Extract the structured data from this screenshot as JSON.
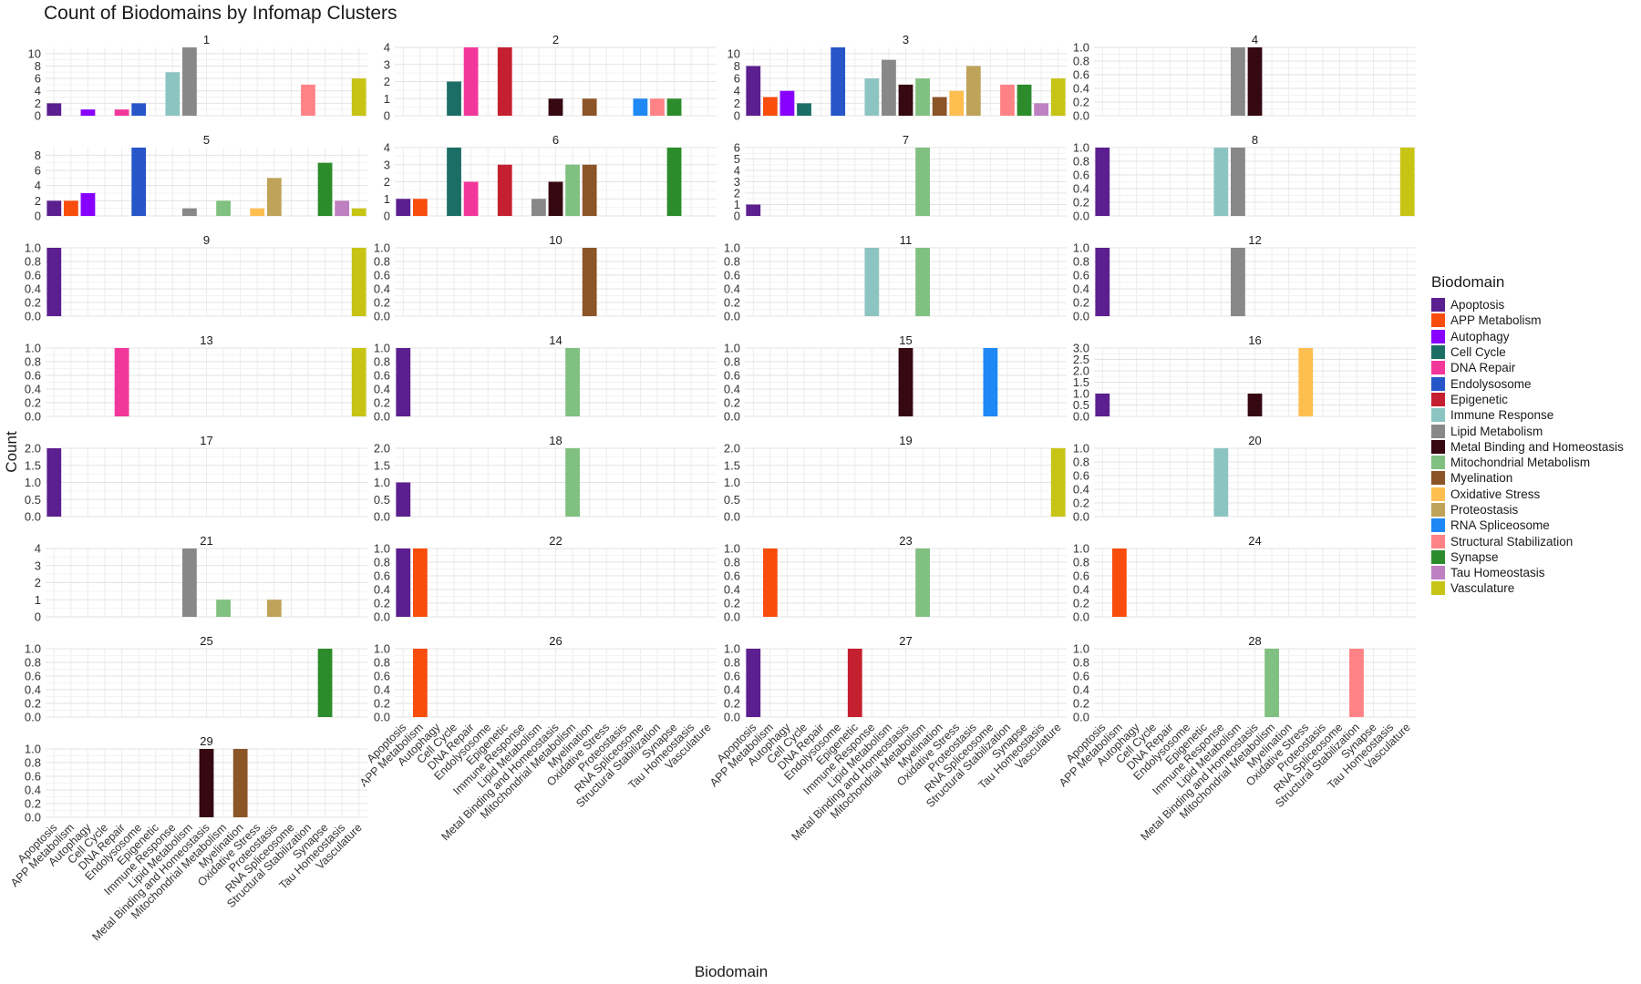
{
  "chart_data": {
    "type": "bar",
    "title": "Count of Biodomains by Infomap Clusters",
    "xlabel": "Biodomain",
    "ylabel": "Count",
    "legend_title": "Biodomain",
    "legend_position": "right",
    "grid": true,
    "categories": [
      "Apoptosis",
      "APP Metabolism",
      "Autophagy",
      "Cell Cycle",
      "DNA Repair",
      "Endolysosome",
      "Epigenetic",
      "Immune Response",
      "Lipid Metabolism",
      "Metal Binding and Homeostasis",
      "Mitochondrial Metabolism",
      "Myelination",
      "Oxidative Stress",
      "Proteostasis",
      "RNA Spliceosome",
      "Structural Stabilization",
      "Synapse",
      "Tau Homeostasis",
      "Vasculature"
    ],
    "colors": [
      "#5B1F8F",
      "#F94D0E",
      "#8800FF",
      "#1B6E66",
      "#F2379B",
      "#2656C8",
      "#C4202F",
      "#8CC4C2",
      "#888888",
      "#350812",
      "#80C080",
      "#8B5528",
      "#FFBE50",
      "#BFA35A",
      "#1E88F5",
      "#FF8386",
      "#2C8C2C",
      "#BE80C0",
      "#C8C416"
    ],
    "panels": [
      {
        "label": "1",
        "ylim": [
          0,
          11
        ],
        "yticks": [
          0,
          2,
          4,
          6,
          8,
          10
        ],
        "values": [
          2,
          0,
          1,
          0,
          1,
          2,
          0,
          7,
          11,
          0,
          0,
          0,
          0,
          0,
          0,
          5,
          0,
          0,
          6
        ]
      },
      {
        "label": "2",
        "ylim": [
          0,
          4
        ],
        "yticks": [
          0,
          1,
          2,
          3,
          4
        ],
        "values": [
          0,
          0,
          0,
          2,
          4,
          0,
          4,
          0,
          0,
          1,
          0,
          1,
          0,
          0,
          1,
          1,
          1,
          0,
          0
        ]
      },
      {
        "label": "3",
        "ylim": [
          0,
          11
        ],
        "yticks": [
          0,
          2,
          4,
          6,
          8,
          10
        ],
        "values": [
          8,
          3,
          4,
          2,
          0,
          11,
          0,
          6,
          9,
          5,
          6,
          3,
          4,
          8,
          0,
          5,
          5,
          2,
          6
        ]
      },
      {
        "label": "4",
        "ylim": [
          0,
          1
        ],
        "yticks": [
          0,
          0.2,
          0.4,
          0.6,
          0.8,
          1.0
        ],
        "values": [
          0,
          0,
          0,
          0,
          0,
          0,
          0,
          0,
          1,
          1,
          0,
          0,
          0,
          0,
          0,
          0,
          0,
          0,
          0
        ]
      },
      {
        "label": "5",
        "ylim": [
          0,
          9
        ],
        "yticks": [
          0,
          2,
          4,
          6,
          8
        ],
        "values": [
          2,
          2,
          3,
          0,
          0,
          9,
          0,
          0,
          1,
          0,
          2,
          0,
          1,
          5,
          0,
          0,
          7,
          2,
          1
        ]
      },
      {
        "label": "6",
        "ylim": [
          0,
          4
        ],
        "yticks": [
          0,
          1,
          2,
          3,
          4
        ],
        "values": [
          1,
          1,
          0,
          4,
          2,
          0,
          3,
          0,
          1,
          2,
          3,
          3,
          0,
          0,
          0,
          0,
          4,
          0,
          0
        ]
      },
      {
        "label": "7",
        "ylim": [
          0,
          6
        ],
        "yticks": [
          0,
          1,
          2,
          3,
          4,
          5,
          6
        ],
        "values": [
          1,
          0,
          0,
          0,
          0,
          0,
          0,
          0,
          0,
          0,
          6,
          0,
          0,
          0,
          0,
          0,
          0,
          0,
          0
        ]
      },
      {
        "label": "8",
        "ylim": [
          0,
          1
        ],
        "yticks": [
          0,
          0.2,
          0.4,
          0.6,
          0.8,
          1.0
        ],
        "values": [
          1,
          0,
          0,
          0,
          0,
          0,
          0,
          1,
          1,
          0,
          0,
          0,
          0,
          0,
          0,
          0,
          0,
          0,
          1
        ]
      },
      {
        "label": "9",
        "ylim": [
          0,
          1
        ],
        "yticks": [
          0,
          0.2,
          0.4,
          0.6,
          0.8,
          1.0
        ],
        "values": [
          1,
          0,
          0,
          0,
          0,
          0,
          0,
          0,
          0,
          0,
          0,
          0,
          0,
          0,
          0,
          0,
          0,
          0,
          1
        ]
      },
      {
        "label": "10",
        "ylim": [
          0,
          1
        ],
        "yticks": [
          0,
          0.2,
          0.4,
          0.6,
          0.8,
          1.0
        ],
        "values": [
          0,
          0,
          0,
          0,
          0,
          0,
          0,
          0,
          0,
          0,
          0,
          1,
          0,
          0,
          0,
          0,
          0,
          0,
          0
        ]
      },
      {
        "label": "11",
        "ylim": [
          0,
          1
        ],
        "yticks": [
          0,
          0.2,
          0.4,
          0.6,
          0.8,
          1.0
        ],
        "values": [
          0,
          0,
          0,
          0,
          0,
          0,
          0,
          1,
          0,
          0,
          1,
          0,
          0,
          0,
          0,
          0,
          0,
          0,
          0
        ]
      },
      {
        "label": "12",
        "ylim": [
          0,
          1
        ],
        "yticks": [
          0,
          0.2,
          0.4,
          0.6,
          0.8,
          1.0
        ],
        "values": [
          1,
          0,
          0,
          0,
          0,
          0,
          0,
          0,
          1,
          0,
          0,
          0,
          0,
          0,
          0,
          0,
          0,
          0,
          0
        ]
      },
      {
        "label": "13",
        "ylim": [
          0,
          1
        ],
        "yticks": [
          0,
          0.2,
          0.4,
          0.6,
          0.8,
          1.0
        ],
        "values": [
          0,
          0,
          0,
          0,
          1,
          0,
          0,
          0,
          0,
          0,
          0,
          0,
          0,
          0,
          0,
          0,
          0,
          0,
          1
        ]
      },
      {
        "label": "14",
        "ylim": [
          0,
          1
        ],
        "yticks": [
          0,
          0.2,
          0.4,
          0.6,
          0.8,
          1.0
        ],
        "values": [
          1,
          0,
          0,
          0,
          0,
          0,
          0,
          0,
          0,
          0,
          1,
          0,
          0,
          0,
          0,
          0,
          0,
          0,
          0
        ]
      },
      {
        "label": "15",
        "ylim": [
          0,
          1
        ],
        "yticks": [
          0,
          0.2,
          0.4,
          0.6,
          0.8,
          1.0
        ],
        "values": [
          0,
          0,
          0,
          0,
          0,
          0,
          0,
          0,
          0,
          1,
          0,
          0,
          0,
          0,
          1,
          0,
          0,
          0,
          0
        ]
      },
      {
        "label": "16",
        "ylim": [
          0,
          3
        ],
        "yticks": [
          0,
          0.5,
          1.0,
          1.5,
          2.0,
          2.5,
          3.0
        ],
        "values": [
          1,
          0,
          0,
          0,
          0,
          0,
          0,
          0,
          0,
          1,
          0,
          0,
          3,
          0,
          0,
          0,
          0,
          0,
          0
        ]
      },
      {
        "label": "17",
        "ylim": [
          0,
          2
        ],
        "yticks": [
          0,
          0.5,
          1.0,
          1.5,
          2.0
        ],
        "values": [
          2,
          0,
          0,
          0,
          0,
          0,
          0,
          0,
          0,
          0,
          0,
          0,
          0,
          0,
          0,
          0,
          0,
          0,
          0
        ]
      },
      {
        "label": "18",
        "ylim": [
          0,
          2
        ],
        "yticks": [
          0,
          0.5,
          1.0,
          1.5,
          2.0
        ],
        "values": [
          1,
          0,
          0,
          0,
          0,
          0,
          0,
          0,
          0,
          0,
          2,
          0,
          0,
          0,
          0,
          0,
          0,
          0,
          0
        ]
      },
      {
        "label": "19",
        "ylim": [
          0,
          2
        ],
        "yticks": [
          0,
          0.5,
          1.0,
          1.5,
          2.0
        ],
        "values": [
          0,
          0,
          0,
          0,
          0,
          0,
          0,
          0,
          0,
          0,
          0,
          0,
          0,
          0,
          0,
          0,
          0,
          0,
          2
        ]
      },
      {
        "label": "20",
        "ylim": [
          0,
          1
        ],
        "yticks": [
          0,
          0.2,
          0.4,
          0.6,
          0.8,
          1.0
        ],
        "values": [
          0,
          0,
          0,
          0,
          0,
          0,
          0,
          1,
          0,
          0,
          0,
          0,
          0,
          0,
          0,
          0,
          0,
          0,
          0
        ]
      },
      {
        "label": "21",
        "ylim": [
          0,
          4
        ],
        "yticks": [
          0,
          1,
          2,
          3,
          4
        ],
        "values": [
          0,
          0,
          0,
          0,
          0,
          0,
          0,
          0,
          4,
          0,
          1,
          0,
          0,
          1,
          0,
          0,
          0,
          0,
          0
        ]
      },
      {
        "label": "22",
        "ylim": [
          0,
          1
        ],
        "yticks": [
          0,
          0.2,
          0.4,
          0.6,
          0.8,
          1.0
        ],
        "values": [
          1,
          1,
          0,
          0,
          0,
          0,
          0,
          0,
          0,
          0,
          0,
          0,
          0,
          0,
          0,
          0,
          0,
          0,
          0
        ]
      },
      {
        "label": "23",
        "ylim": [
          0,
          1
        ],
        "yticks": [
          0,
          0.2,
          0.4,
          0.6,
          0.8,
          1.0
        ],
        "values": [
          0,
          1,
          0,
          0,
          0,
          0,
          0,
          0,
          0,
          0,
          1,
          0,
          0,
          0,
          0,
          0,
          0,
          0,
          0
        ]
      },
      {
        "label": "24",
        "ylim": [
          0,
          1
        ],
        "yticks": [
          0,
          0.2,
          0.4,
          0.6,
          0.8,
          1.0
        ],
        "values": [
          0,
          1,
          0,
          0,
          0,
          0,
          0,
          0,
          0,
          0,
          0,
          0,
          0,
          0,
          0,
          0,
          0,
          0,
          0
        ]
      },
      {
        "label": "25",
        "ylim": [
          0,
          1
        ],
        "yticks": [
          0,
          0.2,
          0.4,
          0.6,
          0.8,
          1.0
        ],
        "values": [
          0,
          0,
          0,
          0,
          0,
          0,
          0,
          0,
          0,
          0,
          0,
          0,
          0,
          0,
          0,
          0,
          1,
          0,
          0
        ]
      },
      {
        "label": "26",
        "ylim": [
          0,
          1
        ],
        "yticks": [
          0,
          0.2,
          0.4,
          0.6,
          0.8,
          1.0
        ],
        "values": [
          0,
          1,
          0,
          0,
          0,
          0,
          0,
          0,
          0,
          0,
          0,
          0,
          0,
          0,
          0,
          0,
          0,
          0,
          0
        ]
      },
      {
        "label": "27",
        "ylim": [
          0,
          1
        ],
        "yticks": [
          0,
          0.2,
          0.4,
          0.6,
          0.8,
          1.0
        ],
        "values": [
          1,
          0,
          0,
          0,
          0,
          0,
          1,
          0,
          0,
          0,
          0,
          0,
          0,
          0,
          0,
          0,
          0,
          0,
          0
        ]
      },
      {
        "label": "28",
        "ylim": [
          0,
          1
        ],
        "yticks": [
          0,
          0.2,
          0.4,
          0.6,
          0.8,
          1.0
        ],
        "values": [
          0,
          0,
          0,
          0,
          0,
          0,
          0,
          0,
          0,
          0,
          1,
          0,
          0,
          0,
          0,
          1,
          0,
          0,
          0
        ]
      },
      {
        "label": "29",
        "ylim": [
          0,
          1
        ],
        "yticks": [
          0,
          0.2,
          0.4,
          0.6,
          0.8,
          1.0
        ],
        "values": [
          0,
          0,
          0,
          0,
          0,
          0,
          0,
          0,
          0,
          1,
          0,
          1,
          0,
          0,
          0,
          0,
          0,
          0,
          0
        ]
      }
    ]
  }
}
